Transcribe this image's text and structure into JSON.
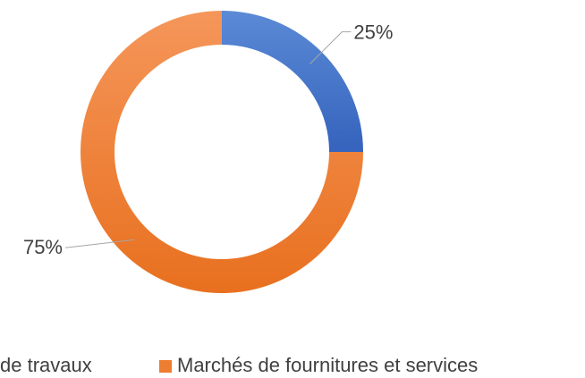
{
  "chart_data": {
    "type": "donut",
    "categories": [
      "de travaux",
      "Marchés de fournitures et services"
    ],
    "values": [
      25,
      75
    ],
    "value_labels": [
      "25%",
      "75%"
    ],
    "colors": [
      "#4472c4",
      "#ed7d31"
    ],
    "legend": "bottom"
  }
}
